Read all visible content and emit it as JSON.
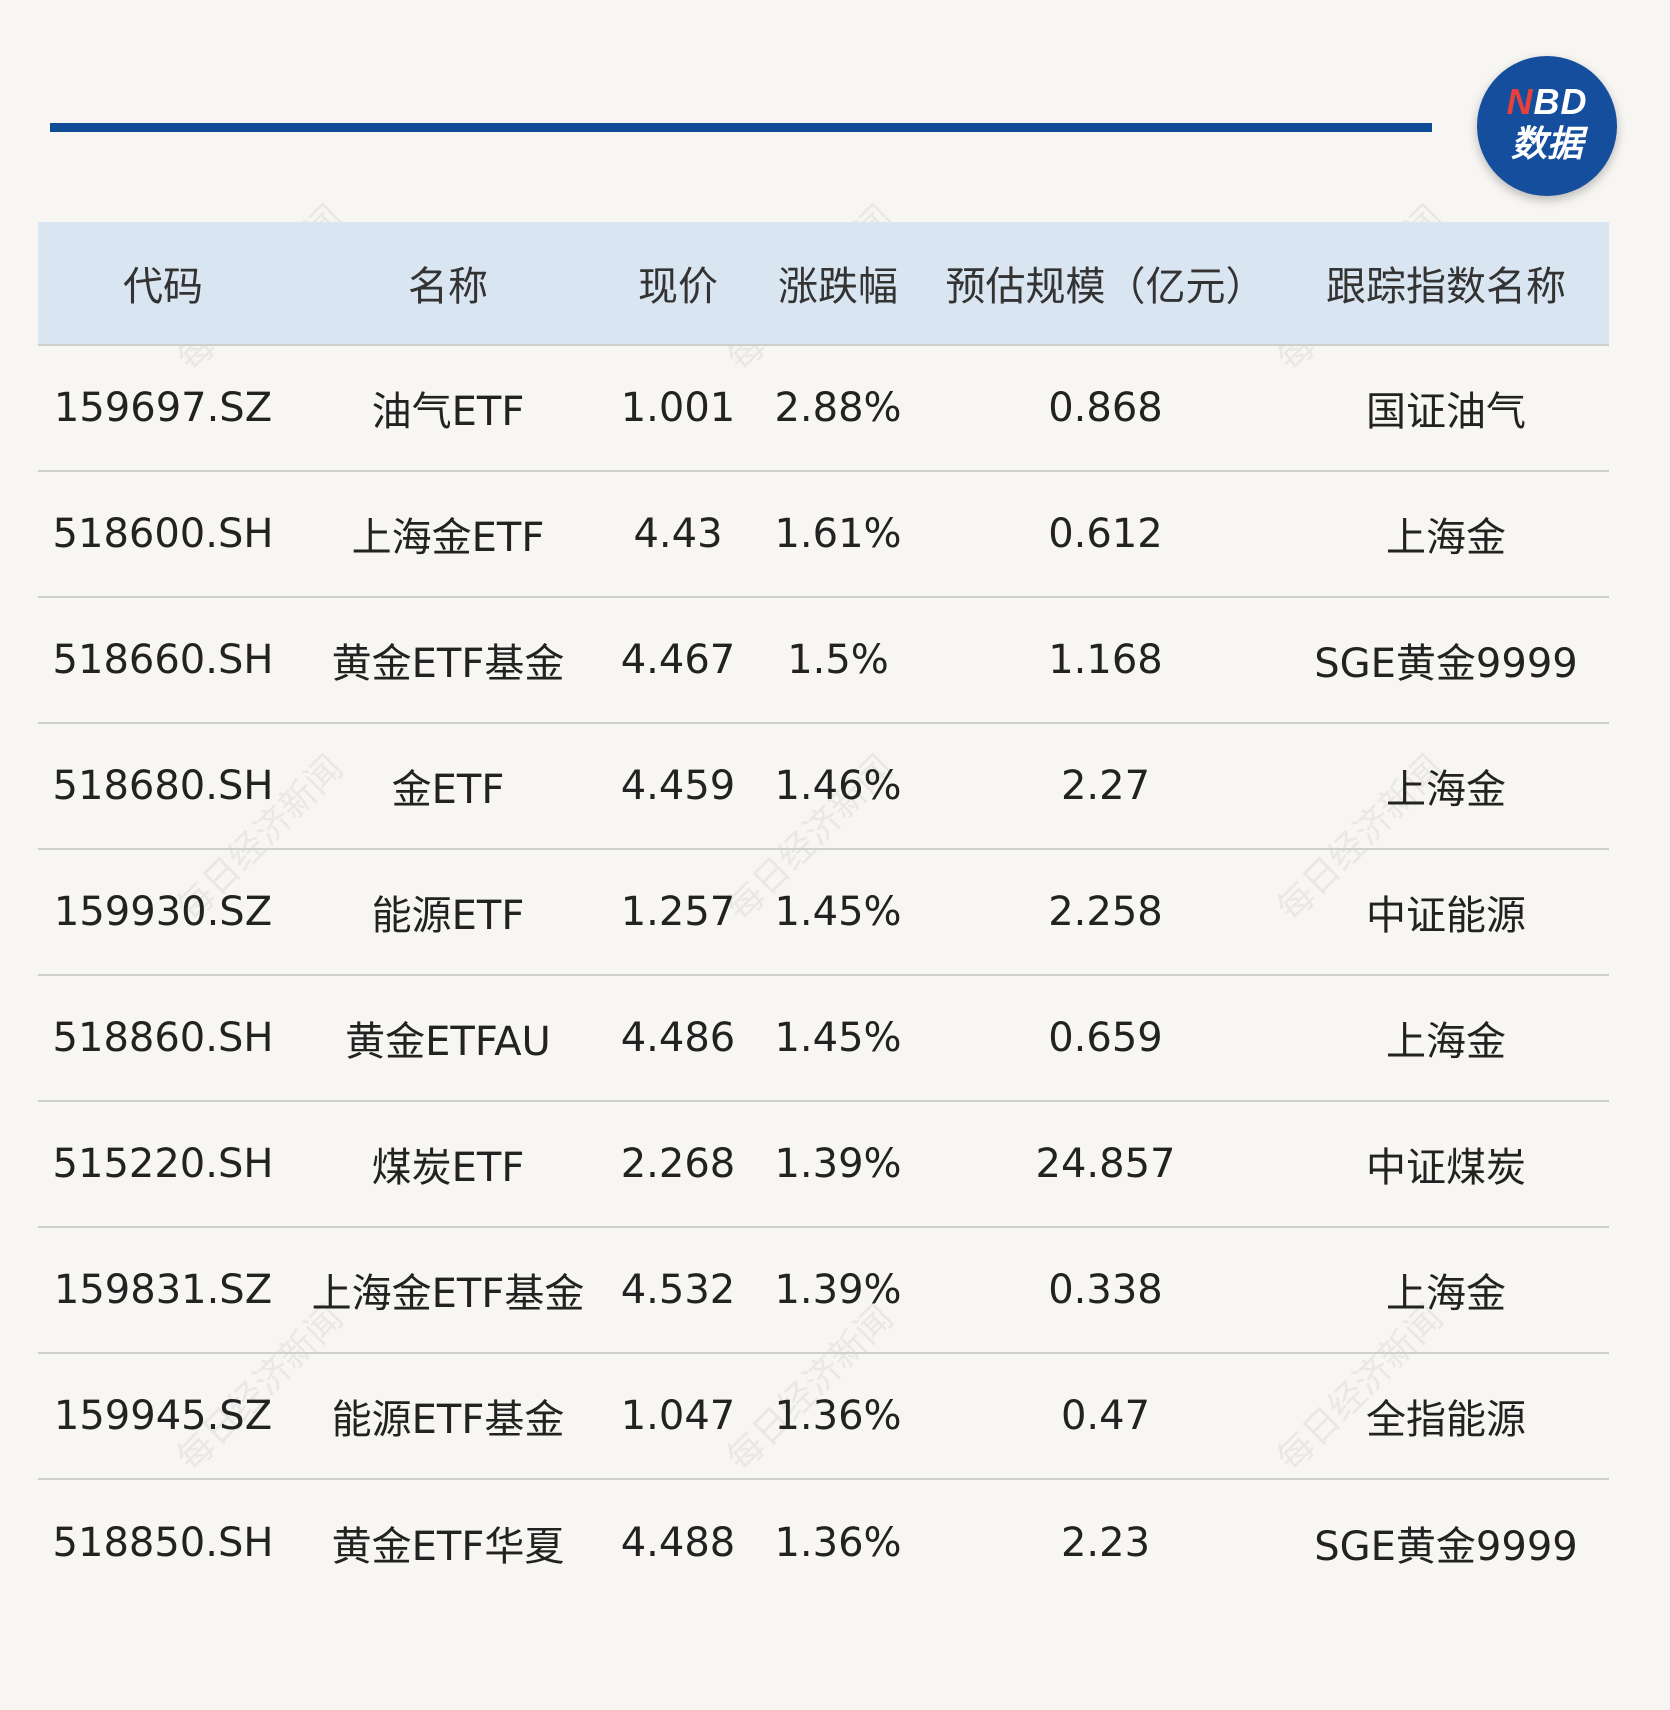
{
  "logo": {
    "brand_n": "N",
    "brand_rest": "BD",
    "sub": "数据"
  },
  "watermark": "每日经济新闻",
  "table": {
    "headers": [
      "代码",
      "名称",
      "现价",
      "涨跌幅",
      "预估规模（亿元）",
      "跟踪指数名称"
    ],
    "rows": [
      [
        "159697.SZ",
        "油气ETF",
        "1.001",
        "2.88%",
        "0.868",
        "国证油气"
      ],
      [
        "518600.SH",
        "上海金ETF",
        "4.43",
        "1.61%",
        "0.612",
        "上海金"
      ],
      [
        "518660.SH",
        "黄金ETF基金",
        "4.467",
        "1.5%",
        "1.168",
        "SGE黄金9999"
      ],
      [
        "518680.SH",
        "金ETF",
        "4.459",
        "1.46%",
        "2.27",
        "上海金"
      ],
      [
        "159930.SZ",
        "能源ETF",
        "1.257",
        "1.45%",
        "2.258",
        "中证能源"
      ],
      [
        "518860.SH",
        "黄金ETFAU",
        "4.486",
        "1.45%",
        "0.659",
        "上海金"
      ],
      [
        "515220.SH",
        "煤炭ETF",
        "2.268",
        "1.39%",
        "24.857",
        "中证煤炭"
      ],
      [
        "159831.SZ",
        "上海金ETF基金",
        "4.532",
        "1.39%",
        "0.338",
        "上海金"
      ],
      [
        "159945.SZ",
        "能源ETF基金",
        "1.047",
        "1.36%",
        "0.47",
        "全指能源"
      ],
      [
        "518850.SH",
        "黄金ETF华夏",
        "4.488",
        "1.36%",
        "2.23",
        "SGE黄金9999"
      ]
    ]
  }
}
